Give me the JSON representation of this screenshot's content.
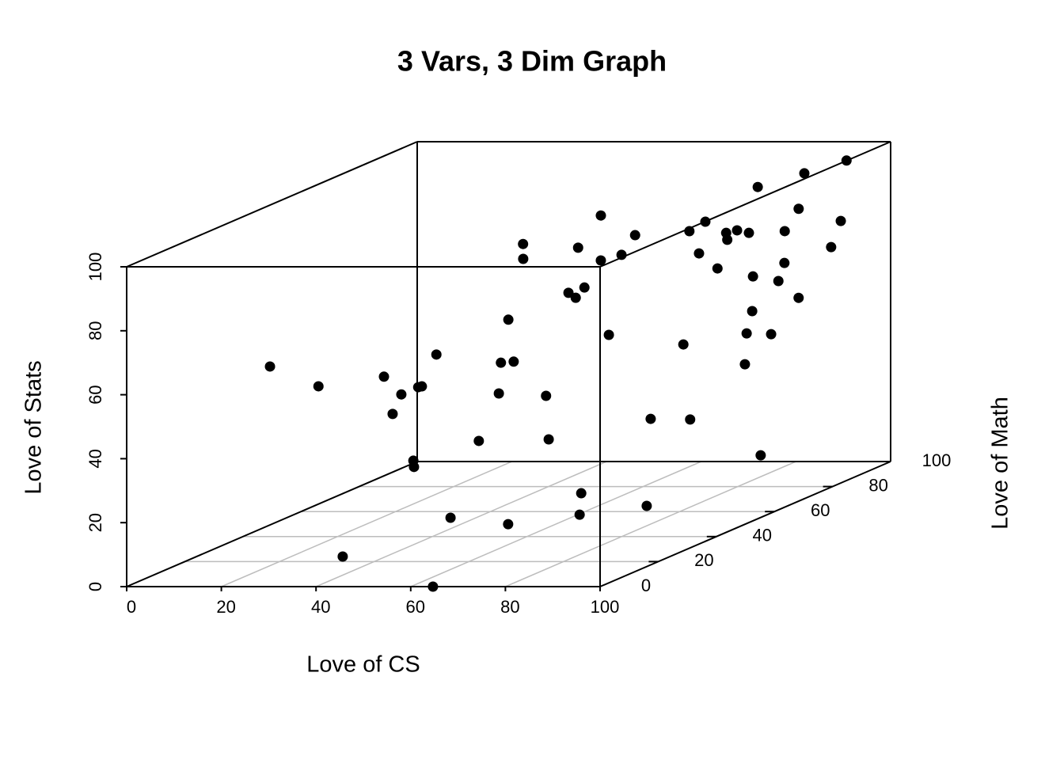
{
  "chart_data": {
    "type": "scatter3d",
    "title": "3 Vars, 3 Dim Graph",
    "xlabel": "Love of CS",
    "ylabel": "Love of Math",
    "zlabel": "Love of Stats",
    "xlim": [
      0,
      100
    ],
    "ylim": [
      0,
      100
    ],
    "zlim": [
      0,
      100
    ],
    "xticks": [
      0,
      20,
      40,
      60,
      80,
      100
    ],
    "yticks": [
      0,
      20,
      40,
      60,
      80,
      100
    ],
    "zticks": [
      0,
      20,
      40,
      60,
      80,
      100
    ],
    "grid": true,
    "color": "#000000",
    "x": [
      18.0,
      22.1,
      29.8,
      30.4,
      34.7,
      30.9,
      28.6,
      28.6,
      17.6,
      20.8,
      39.5,
      64.7,
      50.0,
      43.7,
      51.0,
      45.3,
      43.8,
      57.2,
      37.7,
      40.8,
      68.3,
      57.9,
      64.6,
      56.5,
      61.1,
      52.4,
      56.8,
      68.4,
      74.2,
      48.0,
      57.2,
      68.1,
      58.5,
      58.3,
      85.3,
      80.0,
      77.7,
      66.7,
      82.2,
      71.8,
      67.0,
      75.7,
      71.4,
      74.7,
      73.7,
      76.2,
      75.0,
      83.2,
      86.1,
      88.0,
      90.7,
      97.1,
      90.1,
      85.5,
      80.7,
      83.7,
      81.8,
      86.7,
      83.0,
      90.5,
      90.7,
      91.3
    ],
    "y": [
      20,
      30,
      40,
      45,
      35,
      50,
      55,
      60,
      70,
      65,
      10,
      0,
      30,
      50,
      45,
      55,
      60,
      40,
      75,
      70,
      20,
      50,
      40,
      60,
      55,
      70,
      65,
      45,
      35,
      85,
      70,
      55,
      75,
      80,
      40,
      50,
      65,
      85,
      60,
      80,
      90,
      80,
      90,
      85,
      90,
      90,
      95,
      80,
      75,
      70,
      65,
      60,
      75,
      85,
      95,
      90,
      98,
      90,
      98,
      95,
      98,
      99
    ],
    "z": [
      61.0,
      50.9,
      50.0,
      42.5,
      40.3,
      42.8,
      41.1,
      49.1,
      12.0,
      12.0,
      5.5,
      0.0,
      9.8,
      26.0,
      42.8,
      48.5,
      60.0,
      54.7,
      77.8,
      75.1,
      11.7,
      40.1,
      30.4,
      68.4,
      68.8,
      78.6,
      68.1,
      11.6,
      8.8,
      82.8,
      74.6,
      57.2,
      74.4,
      78.6,
      9.6,
      32.9,
      50.3,
      77.9,
      28.8,
      72.9,
      78.9,
      68.2,
      75.4,
      75.2,
      76.2,
      75.4,
      87.8,
      65.7,
      56.8,
      51.8,
      44.1,
      17.6,
      49.6,
      62.3,
      74.0,
      66.0,
      79.8,
      55.1,
      90.9,
      69.0,
      76.0,
      94.5
    ]
  }
}
